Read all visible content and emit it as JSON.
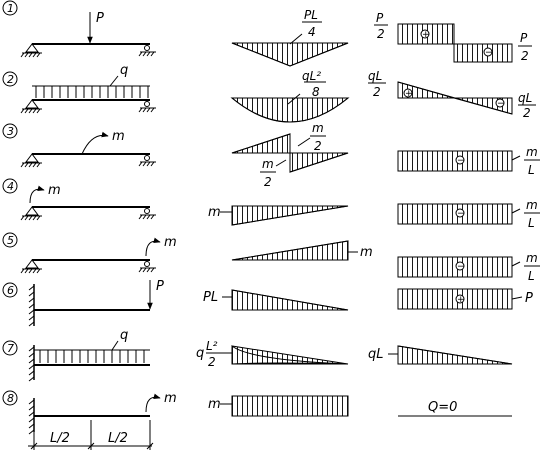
{
  "cases": [
    {
      "number": "1",
      "beam_labels": [
        "P"
      ],
      "moment": {
        "num": "PL",
        "den": "4"
      },
      "shear": {
        "top_num": "P",
        "top_den": "2",
        "bottom_num": "P",
        "bottom_den": "2",
        "sign_left": "+",
        "sign_right": "−"
      }
    },
    {
      "number": "2",
      "beam_labels": [
        "q"
      ],
      "moment": {
        "num": "qL²",
        "den": "8"
      },
      "shear": {
        "top_num": "qL",
        "top_den": "2",
        "bottom_num": "qL",
        "bottom_den": "2",
        "sign_left": "+",
        "sign_right": "−"
      }
    },
    {
      "number": "3",
      "beam_labels": [
        "m"
      ],
      "moment": {
        "top_num": "m",
        "top_den": "2",
        "bottom_num": "m",
        "bottom_den": "2"
      },
      "shear": {
        "num": "m",
        "den": "L",
        "sign": "−"
      }
    },
    {
      "number": "4",
      "beam_labels": [
        "m"
      ],
      "moment": {
        "label": "m"
      },
      "shear": {
        "num": "m",
        "den": "L",
        "sign": "−"
      }
    },
    {
      "number": "5",
      "beam_labels": [
        "m"
      ],
      "moment": {
        "label": "m"
      },
      "shear": {
        "num": "m",
        "den": "L",
        "sign": "−"
      }
    },
    {
      "number": "6",
      "beam_labels": [
        "P"
      ],
      "moment": {
        "label": "PL"
      },
      "shear": {
        "label": "P",
        "sign": "+"
      }
    },
    {
      "number": "7",
      "beam_labels": [
        "q"
      ],
      "moment": {
        "pre": "q",
        "num": "L²",
        "den": "2"
      },
      "shear": {
        "label": "qL"
      }
    },
    {
      "number": "8",
      "beam_labels": [
        "m"
      ],
      "moment": {
        "label": "m"
      },
      "shear": {
        "label": "Q=0"
      }
    }
  ],
  "dimensions": [
    "L/2",
    "L/2"
  ],
  "colors": {
    "ink": "#000000",
    "background": "#ffffff"
  }
}
